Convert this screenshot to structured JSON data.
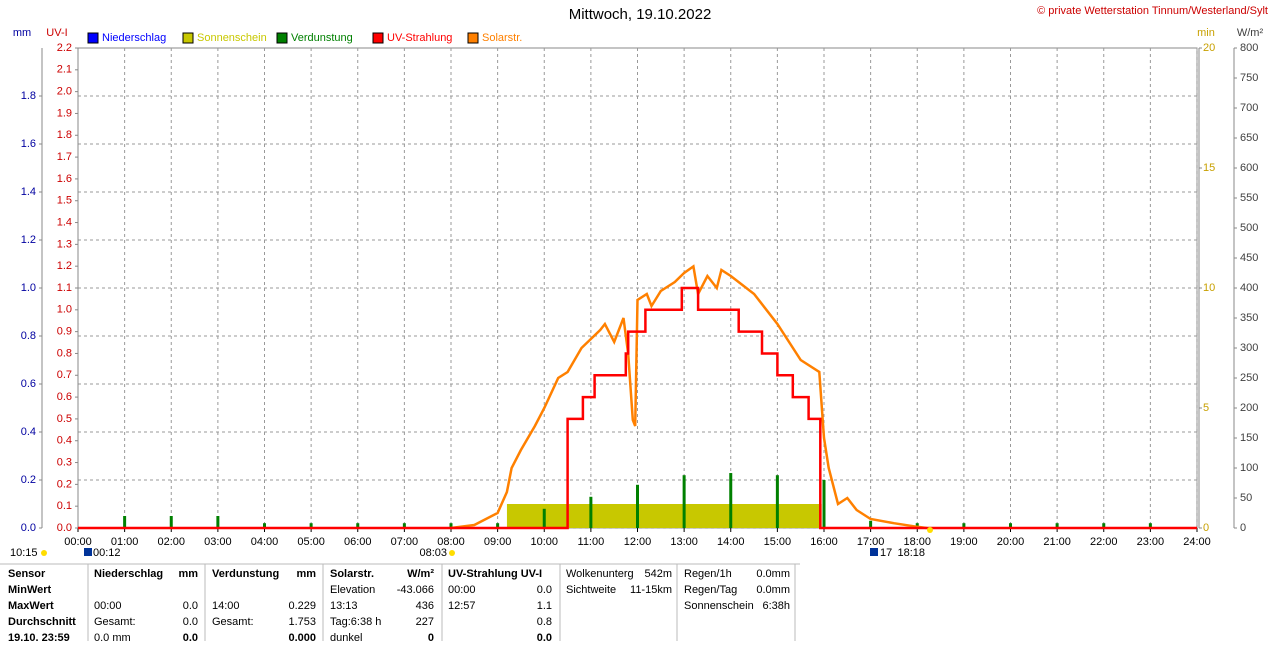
{
  "chart_data": {
    "type": "line",
    "title": "Mittwoch, 19.10.2022",
    "credit": "© private Wetterstation Tinnum/Westerland/Sylt",
    "xlim": [
      0,
      24
    ],
    "xticks": [
      {
        "value": 0,
        "label": "00:00"
      },
      {
        "value": 1,
        "label": "01:00"
      },
      {
        "value": 2,
        "label": "02:00"
      },
      {
        "value": 3,
        "label": "03:00"
      },
      {
        "value": 4,
        "label": "04:00"
      },
      {
        "value": 5,
        "label": "05:00"
      },
      {
        "value": 6,
        "label": "06:00"
      },
      {
        "value": 7,
        "label": "07:00"
      },
      {
        "value": 8,
        "label": "08:00"
      },
      {
        "value": 9,
        "label": "09:00"
      },
      {
        "value": 10,
        "label": "10:00"
      },
      {
        "value": 11,
        "label": "11:00"
      },
      {
        "value": 12,
        "label": "12:00"
      },
      {
        "value": 13,
        "label": "13:00"
      },
      {
        "value": 14,
        "label": "14:00"
      },
      {
        "value": 15,
        "label": "15:00"
      },
      {
        "value": 16,
        "label": "16:00"
      },
      {
        "value": 17,
        "label": "17:00"
      },
      {
        "value": 18,
        "label": "18:00"
      },
      {
        "value": 19,
        "label": "19:00"
      },
      {
        "value": 20,
        "label": "20:00"
      },
      {
        "value": 21,
        "label": "21:00"
      },
      {
        "value": 22,
        "label": "22:00"
      },
      {
        "value": 23,
        "label": "23:00"
      },
      {
        "value": 24,
        "label": "24:00"
      }
    ],
    "grid": true,
    "axes": {
      "mm": {
        "label": "mm",
        "color": "#0000a0",
        "ylim": [
          0,
          2
        ],
        "yticks": [
          {
            "value": 0,
            "label": "0.0"
          },
          0.2,
          0.4,
          0.6,
          0.8,
          {
            "value": 1,
            "label": "1.0"
          },
          1.2,
          1.4,
          1.6,
          1.8
        ]
      },
      "uv": {
        "label": "UV-I",
        "color": "#cc0000",
        "ylim": [
          0,
          2.2
        ],
        "yticks": [
          {
            "value": 0,
            "label": "0.0"
          },
          0.1,
          0.2,
          0.3,
          0.4,
          0.5,
          0.6,
          0.7,
          0.8,
          0.9,
          {
            "value": 1,
            "label": "1.0"
          },
          1.1,
          1.2,
          1.3,
          1.4,
          1.5,
          1.6,
          1.7,
          1.8,
          1.9,
          {
            "value": 2,
            "label": "2.0"
          },
          2.1,
          2.2
        ]
      },
      "min": {
        "label": "min",
        "color": "#c8a000",
        "ylim": [
          0,
          20
        ],
        "yticks": [
          0,
          5,
          10,
          15,
          20
        ]
      },
      "w": {
        "label": "W/m²",
        "color": "#404040",
        "ylim": [
          0,
          800
        ],
        "yticks": [
          0,
          50,
          100,
          150,
          200,
          250,
          300,
          350,
          400,
          450,
          500,
          550,
          600,
          650,
          700,
          750,
          800
        ]
      }
    },
    "series": [
      {
        "name": "Niederschlag",
        "color": "#0000ff",
        "type": "bar",
        "axis": "mm",
        "x": [],
        "values": []
      },
      {
        "name": "Sonnenschein",
        "color": "#c8c800",
        "type": "span",
        "axis": "min",
        "bins": [
          9.2,
          15.95
        ],
        "values": [
          1
        ]
      },
      {
        "name": "Verdunstung",
        "color": "#008000",
        "type": "bar",
        "axis": "mm",
        "x": [
          1,
          2,
          3,
          4,
          5,
          6,
          7,
          8,
          9,
          10,
          11,
          12,
          13,
          14,
          15,
          16,
          17,
          18,
          19,
          20,
          21,
          22,
          23
        ],
        "values": [
          0.05,
          0.05,
          0.05,
          0.02,
          0.02,
          0.02,
          0.02,
          0.02,
          0.02,
          0.08,
          0.13,
          0.18,
          0.22,
          0.229,
          0.22,
          0.2,
          0.03,
          0.02,
          0.02,
          0.02,
          0.02,
          0.02,
          0.02
        ]
      },
      {
        "name": "UV-Strahlung",
        "color": "#ff0000",
        "type": "line",
        "axis": "uv",
        "x": [
          0,
          10.5,
          10.5,
          10.83,
          10.83,
          11.08,
          11.08,
          11.75,
          11.75,
          11.8,
          11.8,
          12.17,
          12.17,
          12.95,
          12.95,
          13.3,
          13.3,
          14.17,
          14.17,
          14.67,
          14.67,
          15,
          15,
          15.33,
          15.33,
          15.67,
          15.67,
          15.92,
          15.92,
          24
        ],
        "values": [
          0,
          0,
          0.5,
          0.5,
          0.6,
          0.6,
          0.7,
          0.7,
          0.8,
          0.8,
          0.9,
          0.9,
          1,
          1,
          1.1,
          1.1,
          1,
          1,
          0.9,
          0.9,
          0.8,
          0.8,
          0.7,
          0.7,
          0.6,
          0.6,
          0.5,
          0.5,
          0,
          0
        ]
      },
      {
        "name": "Solarstr.",
        "color": "#ff8000",
        "type": "line",
        "axis": "w",
        "x": [
          8,
          8.5,
          9,
          9.2,
          9.3,
          9.5,
          9.8,
          10,
          10.3,
          10.5,
          10.8,
          11.2,
          11.3,
          11.5,
          11.7,
          11.8,
          11.9,
          11.95,
          12,
          12.2,
          12.3,
          12.5,
          12.8,
          13,
          13.2,
          13.3,
          13.5,
          13.7,
          13.8,
          14,
          14.5,
          15,
          15.5,
          15.9,
          16,
          16.1,
          16.3,
          16.5,
          16.7,
          17,
          17.5,
          18,
          18.2
        ],
        "values": [
          0,
          5,
          25,
          60,
          100,
          130,
          170,
          200,
          250,
          260,
          300,
          330,
          340,
          310,
          350,
          290,
          180,
          170,
          380,
          390,
          370,
          395,
          410,
          425,
          436,
          390,
          420,
          400,
          430,
          420,
          390,
          340,
          280,
          260,
          150,
          100,
          40,
          50,
          30,
          15,
          8,
          2,
          0
        ]
      }
    ],
    "markers": [
      "10:15",
      "00:12",
      "08:03",
      "17",
      "18:18"
    ]
  },
  "table": {
    "columns": [
      [
        "Sensor",
        "MinWert",
        "MaxWert",
        "Durchschnitt",
        "19.10. 23:59"
      ],
      [
        "Niederschlag",
        null,
        "00:00",
        "Gesamt:",
        "0.0 mm"
      ],
      [
        "mm",
        null,
        "0.0",
        "0.0",
        "0.0"
      ],
      [
        "Verdunstung",
        null,
        "14:00",
        "Gesamt:",
        null
      ],
      [
        "mm",
        null,
        "0.229",
        "1.753",
        "0.000"
      ],
      [
        "Solarstr.",
        "Elevation",
        "13:13",
        "Tag:6:38 h",
        "dunkel"
      ],
      [
        "W/m²",
        "-43.066",
        "436",
        "227",
        "0"
      ],
      [
        "UV-Strahlung UV-I",
        "00:00",
        "12:57",
        null,
        null
      ],
      [
        null,
        "0.0",
        "1.1",
        "0.8",
        "0.0"
      ],
      [
        "Wolkenunterg",
        "Sichtweite"
      ],
      [
        "542m",
        "11-15km"
      ],
      [
        "Regen/1h",
        "Regen/Tag",
        "Sonnenschein"
      ],
      [
        "0.0mm",
        "0.0mm",
        "6:38h"
      ]
    ]
  }
}
